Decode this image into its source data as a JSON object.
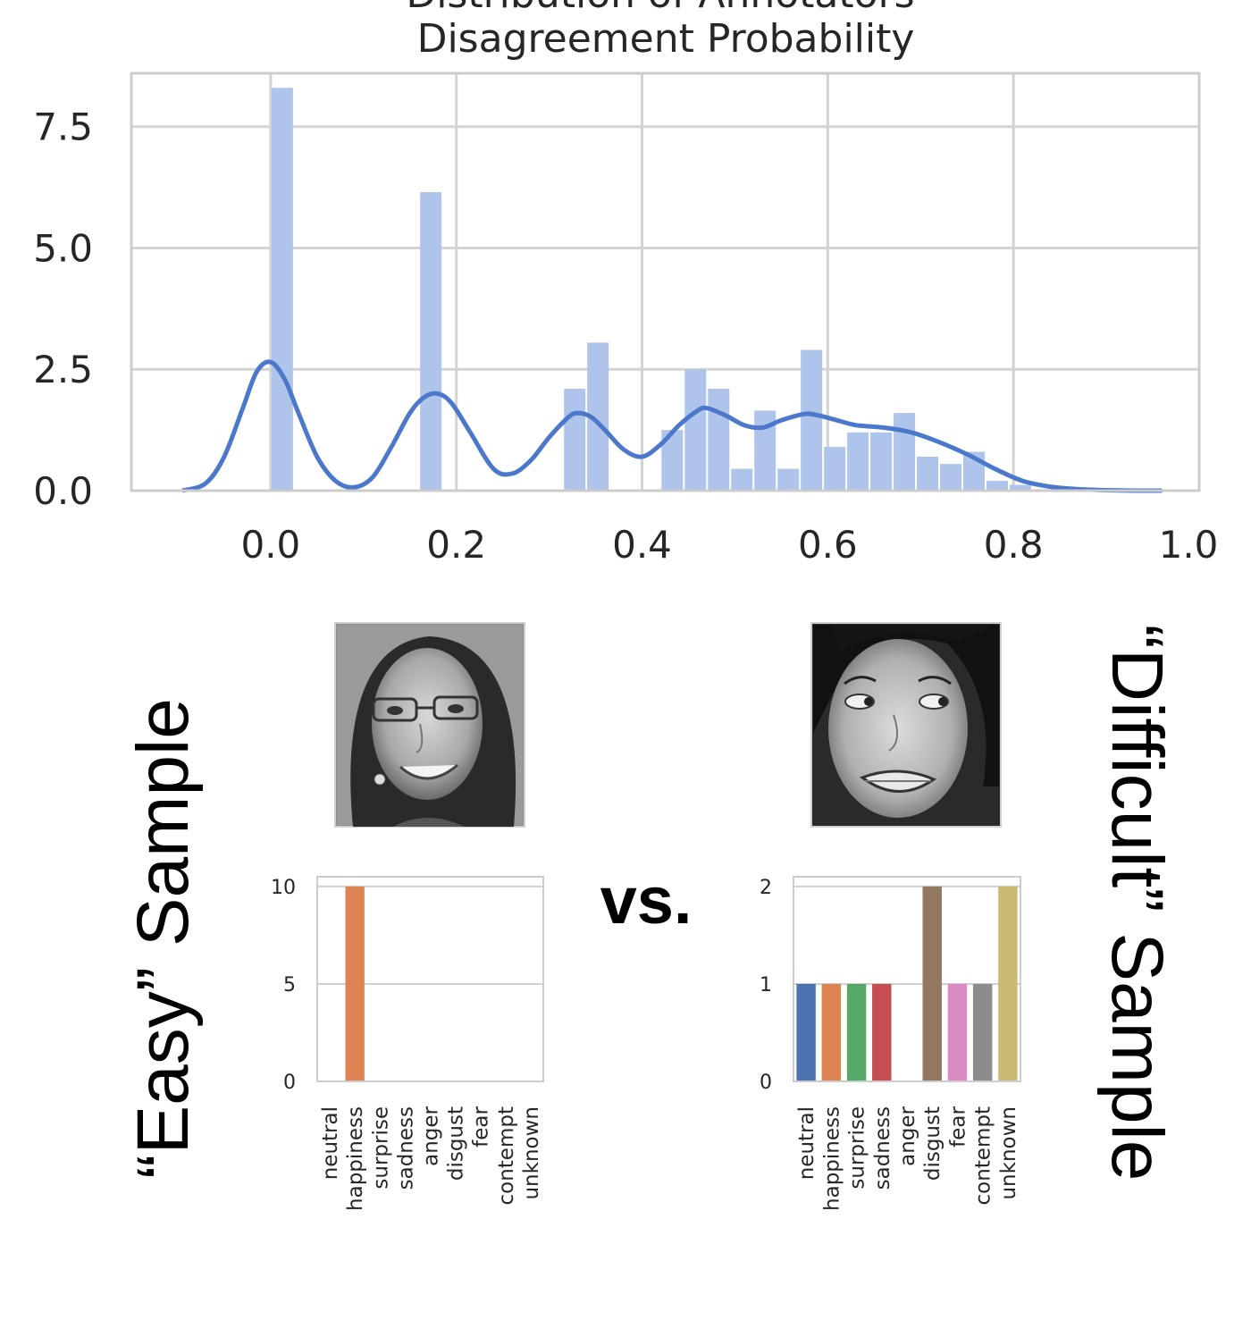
{
  "top_chart": {
    "title_line1": "Distribution of Annotators'",
    "title_line2": "Disagreement Probability"
  },
  "labels": {
    "easy": "“Easy” Sample",
    "difficult": "“Difficult” Sample",
    "vs": "vs."
  },
  "images": {
    "easy_face": "smiling-face-photo",
    "difficult_face": "disgusted-face-photo"
  },
  "colors": {
    "hist_bar": "#aec4ea",
    "kde_line": "#4c78cc",
    "grid": "#d3d3d3",
    "axes": "#cccccc"
  },
  "chart_data": [
    {
      "type": "bar",
      "subtype": "histogram-with-kde",
      "title": "Distribution of Annotators' Disagreement Probability",
      "xlabel": "",
      "ylabel": "",
      "xlim": [
        -0.15,
        1.0
      ],
      "ylim": [
        0,
        8.6
      ],
      "xticks": [
        "0.0",
        "0.2",
        "0.4",
        "0.6",
        "0.8",
        "1.0"
      ],
      "yticks": [
        "0.0",
        "2.5",
        "5.0",
        "7.5"
      ],
      "grid": true,
      "bins": [
        {
          "x0": 0.0,
          "x1": 0.025,
          "value": 8.3
        },
        {
          "x0": 0.16,
          "x1": 0.185,
          "value": 6.15
        },
        {
          "x0": 0.315,
          "x1": 0.34,
          "value": 2.1
        },
        {
          "x0": 0.34,
          "x1": 0.365,
          "value": 3.05
        },
        {
          "x0": 0.42,
          "x1": 0.445,
          "value": 1.25
        },
        {
          "x0": 0.445,
          "x1": 0.47,
          "value": 2.5
        },
        {
          "x0": 0.47,
          "x1": 0.495,
          "value": 2.1
        },
        {
          "x0": 0.495,
          "x1": 0.52,
          "value": 0.45
        },
        {
          "x0": 0.52,
          "x1": 0.545,
          "value": 1.65
        },
        {
          "x0": 0.545,
          "x1": 0.57,
          "value": 0.45
        },
        {
          "x0": 0.57,
          "x1": 0.595,
          "value": 2.9
        },
        {
          "x0": 0.595,
          "x1": 0.62,
          "value": 0.9
        },
        {
          "x0": 0.62,
          "x1": 0.645,
          "value": 1.2
        },
        {
          "x0": 0.645,
          "x1": 0.67,
          "value": 1.2
        },
        {
          "x0": 0.67,
          "x1": 0.695,
          "value": 1.6
        },
        {
          "x0": 0.695,
          "x1": 0.72,
          "value": 0.7
        },
        {
          "x0": 0.72,
          "x1": 0.745,
          "value": 0.55
        },
        {
          "x0": 0.745,
          "x1": 0.77,
          "value": 0.8
        },
        {
          "x0": 0.77,
          "x1": 0.795,
          "value": 0.2
        },
        {
          "x0": 0.795,
          "x1": 0.82,
          "value": 0.12
        },
        {
          "x0": 0.82,
          "x1": 0.96,
          "value": 0.03
        }
      ],
      "kde": {
        "x": [
          -0.095,
          -0.07,
          -0.05,
          -0.03,
          -0.015,
          0.0,
          0.015,
          0.03,
          0.05,
          0.07,
          0.09,
          0.11,
          0.13,
          0.15,
          0.165,
          0.18,
          0.195,
          0.215,
          0.24,
          0.26,
          0.28,
          0.3,
          0.32,
          0.33,
          0.345,
          0.36,
          0.38,
          0.4,
          0.42,
          0.44,
          0.46,
          0.47,
          0.49,
          0.51,
          0.53,
          0.55,
          0.575,
          0.59,
          0.61,
          0.63,
          0.66,
          0.69,
          0.72,
          0.75,
          0.78,
          0.81,
          0.84,
          0.87,
          0.9,
          0.93,
          0.96
        ],
        "y": [
          0.0,
          0.15,
          0.7,
          1.7,
          2.45,
          2.65,
          2.3,
          1.6,
          0.7,
          0.2,
          0.07,
          0.28,
          0.9,
          1.6,
          1.92,
          2.0,
          1.8,
          1.2,
          0.45,
          0.35,
          0.62,
          1.1,
          1.5,
          1.6,
          1.52,
          1.25,
          0.85,
          0.7,
          0.95,
          1.35,
          1.65,
          1.7,
          1.55,
          1.35,
          1.3,
          1.45,
          1.58,
          1.55,
          1.45,
          1.35,
          1.3,
          1.2,
          1.0,
          0.75,
          0.45,
          0.2,
          0.08,
          0.03,
          0.01,
          0.0,
          0.0
        ]
      }
    },
    {
      "type": "bar",
      "name": "easy-sample-votes",
      "categories": [
        "neutral",
        "happiness",
        "surprise",
        "sadness",
        "anger",
        "disgust",
        "fear",
        "contempt",
        "unknown"
      ],
      "values": [
        0,
        10,
        0,
        0,
        0,
        0,
        0,
        0,
        0
      ],
      "colors": [
        "#4c72b0",
        "#dd8452",
        "#55a868",
        "#c44e52",
        "#8172b3",
        "#937860",
        "#da8bc3",
        "#8c8c8c",
        "#ccb974"
      ],
      "yticks": [
        "0",
        "5",
        "10"
      ],
      "ylim": [
        0,
        10.5
      ],
      "grid": true
    },
    {
      "type": "bar",
      "name": "difficult-sample-votes",
      "categories": [
        "neutral",
        "happiness",
        "surprise",
        "sadness",
        "anger",
        "disgust",
        "fear",
        "contempt",
        "unknown"
      ],
      "values": [
        1,
        1,
        1,
        1,
        0,
        2,
        1,
        1,
        2
      ],
      "colors": [
        "#4c72b0",
        "#dd8452",
        "#55a868",
        "#c44e52",
        "#8172b3",
        "#937860",
        "#da8bc3",
        "#8c8c8c",
        "#ccb974"
      ],
      "yticks": [
        "0",
        "1",
        "2"
      ],
      "ylim": [
        0,
        2.1
      ],
      "grid": true
    }
  ]
}
